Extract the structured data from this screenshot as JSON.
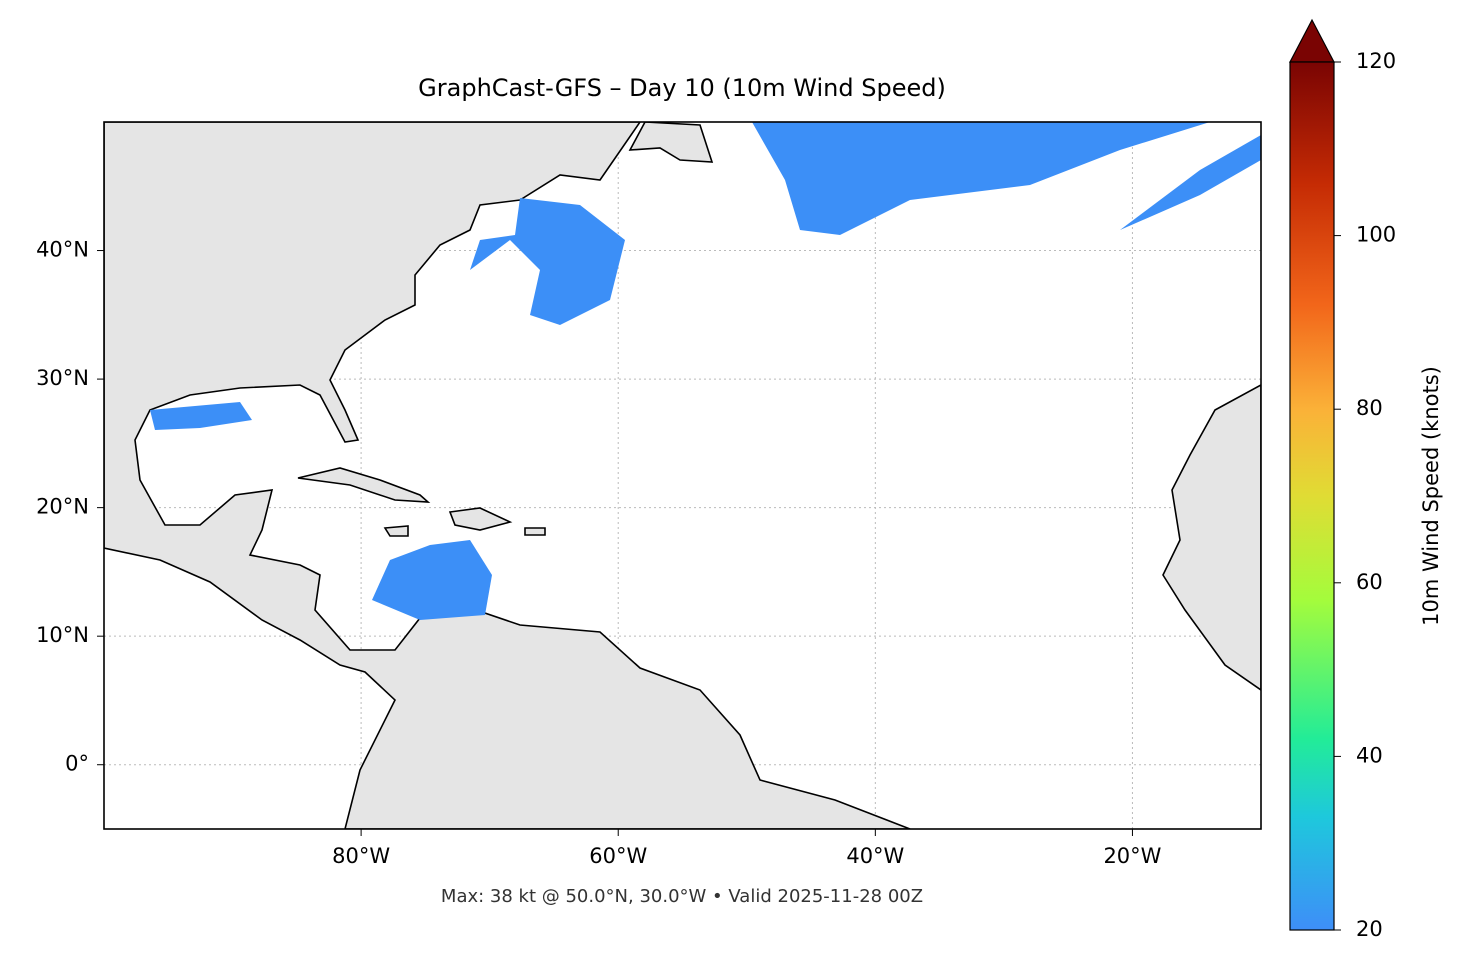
{
  "chart_data": {
    "type": "map",
    "title": "GraphCast-GFS – Day 10 (10m Wind Speed)",
    "footnote": "Max: 38 kt @ 50.0°N, 30.0°W • Valid 2025-11-28 00Z",
    "xlim": [
      -100,
      -10
    ],
    "ylim": [
      -5,
      50
    ],
    "xticks": [
      {
        "value": -80,
        "label": "80°W"
      },
      {
        "value": -60,
        "label": "60°W"
      },
      {
        "value": -40,
        "label": "40°W"
      },
      {
        "value": -20,
        "label": "20°W"
      }
    ],
    "yticks": [
      {
        "value": 0,
        "label": "0°"
      },
      {
        "value": 10,
        "label": "10°N"
      },
      {
        "value": 20,
        "label": "20°N"
      },
      {
        "value": 30,
        "label": "30°N"
      },
      {
        "value": 40,
        "label": "40°N"
      }
    ],
    "grid": true,
    "colorbar": {
      "label": "10m Wind Speed (knots)",
      "lim": [
        20,
        120
      ],
      "ticks": [
        20,
        40,
        60,
        80,
        100,
        120
      ]
    }
  }
}
